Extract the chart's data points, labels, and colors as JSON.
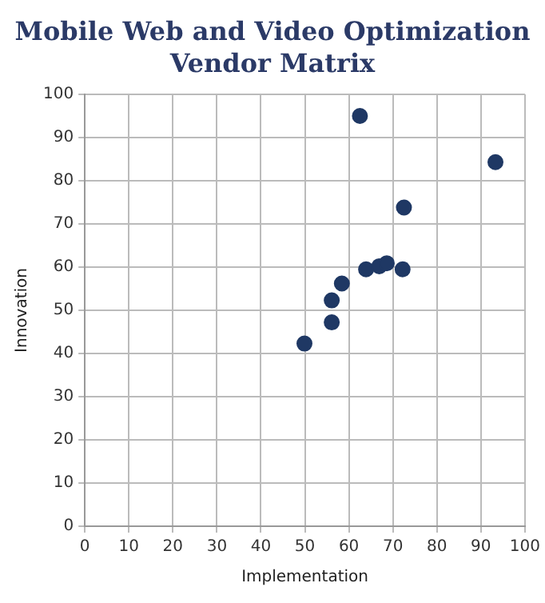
{
  "chart_data": {
    "type": "scatter",
    "title": "Mobile Web and Video Optimization Vendor Matrix",
    "xlabel": "Implementation",
    "ylabel": "Innovation",
    "x": [
      62.5,
      93.3,
      72.5,
      63.9,
      66.9,
      68.6,
      72.2,
      58.4,
      56.1,
      56.1,
      49.9
    ],
    "series": [
      {
        "color": "#1f3864",
        "values": [
          95,
          84.3,
          73.8,
          59.5,
          60.2,
          60.9,
          59.5,
          56.2,
          52.3,
          47.2,
          42.3
        ]
      }
    ],
    "xlim": [
      0,
      100
    ],
    "xticks": [
      0,
      10,
      20,
      30,
      40,
      50,
      60,
      70,
      80,
      90,
      100
    ],
    "ylim": [
      0,
      100
    ],
    "yticks": [
      0,
      10,
      20,
      30,
      40,
      50,
      60,
      70,
      80,
      90,
      100
    ],
    "grid": true,
    "marker": "circle",
    "legend": false
  }
}
